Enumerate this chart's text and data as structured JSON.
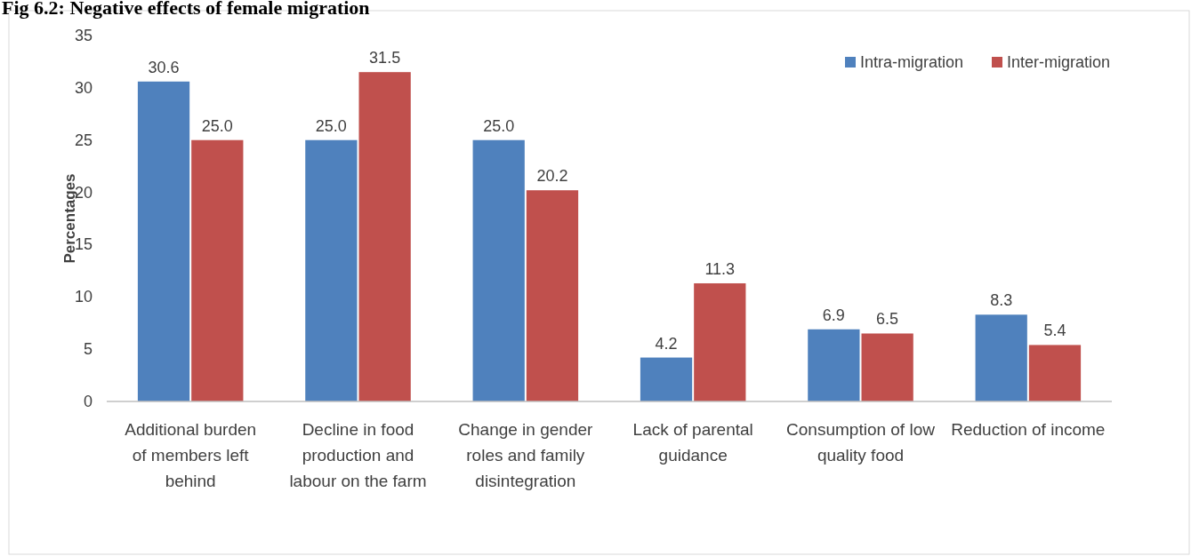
{
  "chart_data": {
    "type": "bar",
    "title": "Fig 6.2:  Negative effects of female migration",
    "ylabel": "Percentages",
    "categories": [
      "Additional burden of members left behind",
      "Decline in food production and labour on the farm",
      "Change in gender roles and family disintegration",
      "Lack of parental guidance",
      "Consumption of low quality food",
      "Reduction of income"
    ],
    "series": [
      {
        "name": "Intra-migration",
        "color": "#4f81bd",
        "values": [
          30.6,
          25.0,
          25.0,
          4.2,
          6.9,
          8.3
        ],
        "value_labels": [
          "30.6",
          "25.0",
          "25.0",
          "4.2",
          "6.9",
          "8.3"
        ]
      },
      {
        "name": "Inter-migration",
        "color": "#c0504d",
        "values": [
          25.0,
          31.5,
          20.2,
          11.3,
          6.5,
          5.4
        ],
        "value_labels": [
          "25.0",
          "31.5",
          "20.2",
          "11.3",
          "6.5",
          "5.4"
        ]
      }
    ],
    "ylim": [
      0,
      35
    ],
    "yticks": [
      0,
      5,
      10,
      15,
      20,
      25,
      30,
      35
    ],
    "grid": false,
    "legend": "top right"
  }
}
